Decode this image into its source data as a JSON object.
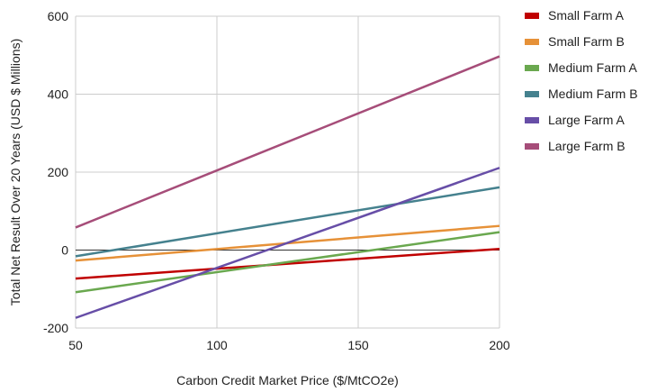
{
  "chart_data": {
    "type": "line",
    "title": "",
    "xlabel": "Carbon Credit Market Price ($/MtCO2e)",
    "ylabel": "Total Net Result Over 20 Years (USD $ Millions)",
    "xlim": [
      50,
      200
    ],
    "ylim": [
      -200,
      600
    ],
    "x_ticks": [
      50,
      100,
      150,
      200
    ],
    "y_ticks": [
      -200,
      0,
      200,
      400,
      600
    ],
    "grid": true,
    "legend_position": "right",
    "series": [
      {
        "name": "Small Farm A",
        "color": "#c00000",
        "x": [
          50,
          200
        ],
        "y": [
          -73,
          3
        ]
      },
      {
        "name": "Small Farm B",
        "color": "#e69138",
        "x": [
          50,
          200
        ],
        "y": [
          -27,
          62
        ]
      },
      {
        "name": "Medium Farm A",
        "color": "#6aa84f",
        "x": [
          50,
          200
        ],
        "y": [
          -108,
          46
        ]
      },
      {
        "name": "Medium Farm B",
        "color": "#45818e",
        "x": [
          50,
          200
        ],
        "y": [
          -16,
          161
        ]
      },
      {
        "name": "Large Farm A",
        "color": "#674ea7",
        "x": [
          50,
          200
        ],
        "y": [
          -174,
          211
        ]
      },
      {
        "name": "Large Farm B",
        "color": "#a64d79",
        "x": [
          50,
          200
        ],
        "y": [
          58,
          497
        ]
      }
    ]
  }
}
